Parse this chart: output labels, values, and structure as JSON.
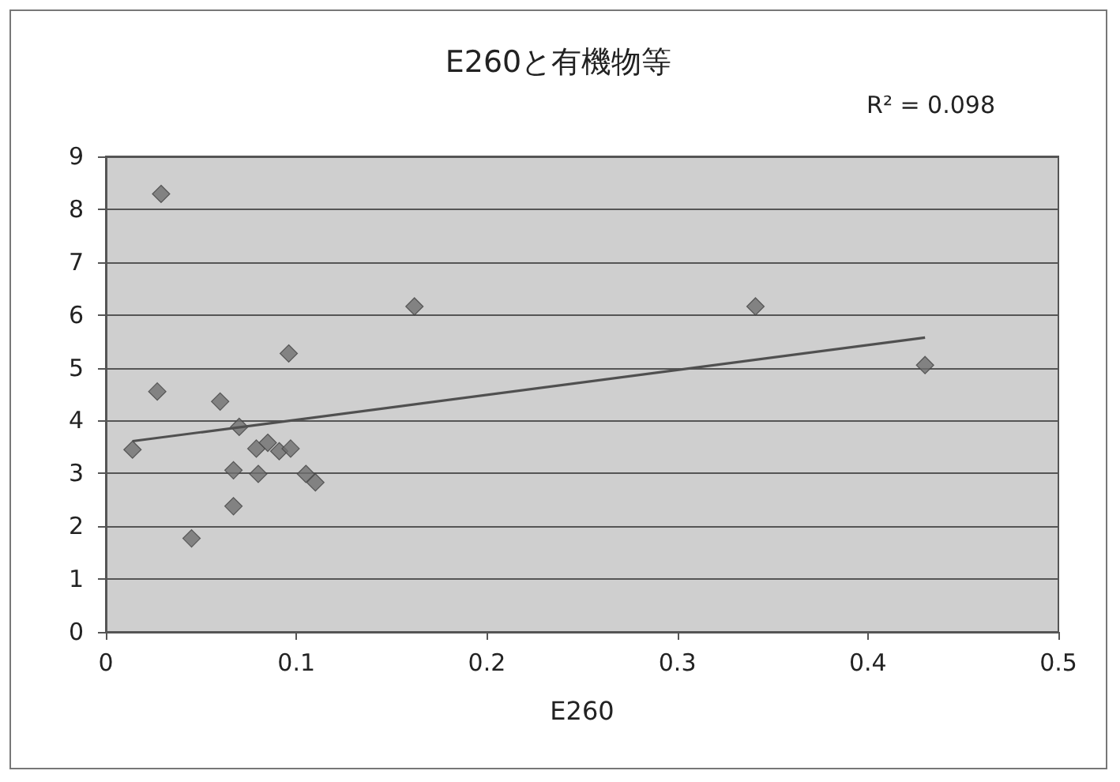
{
  "chart_data": {
    "type": "scatter",
    "title": "E260と有機物等",
    "xlabel": "E260",
    "annotations": [
      "R² = 0.098"
    ],
    "xlim": [
      0,
      0.5
    ],
    "xticks": [
      0,
      0.1,
      0.2,
      0.3,
      0.4,
      0.5
    ],
    "ylim": [
      0,
      9
    ],
    "yticks": [
      0,
      1,
      2,
      3,
      4,
      5,
      6,
      7,
      8,
      9
    ],
    "grid": "y",
    "marker": "diamond",
    "series": [
      {
        "color": "#6e6e6e",
        "x": [
          0.029,
          0.162,
          0.096,
          0.027,
          0.06,
          0.07,
          0.014,
          0.079,
          0.085,
          0.091,
          0.097,
          0.067,
          0.08,
          0.105,
          0.11,
          0.067,
          0.045,
          0.341,
          0.43
        ],
        "values": [
          8.29,
          6.16,
          5.27,
          4.55,
          4.36,
          3.88,
          3.45,
          3.47,
          3.58,
          3.42,
          3.47,
          3.06,
          2.99,
          2.99,
          2.83,
          2.38,
          1.77,
          6.16,
          5.05
        ]
      },
      {
        "type": "line",
        "color": "#505050",
        "marker": "none",
        "line_style": "solid",
        "x": [
          0.014,
          0.43
        ],
        "values": [
          3.61,
          5.57
        ]
      }
    ]
  }
}
